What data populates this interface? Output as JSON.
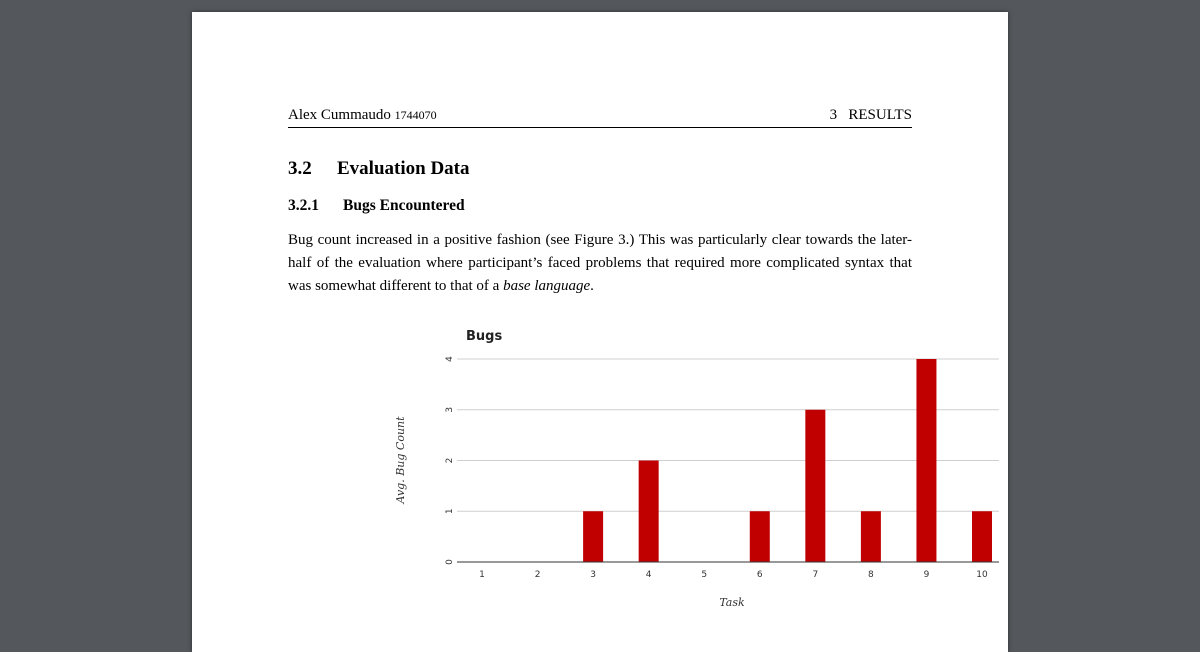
{
  "header": {
    "author": "Alex Cummaudo",
    "student_id": "1744070",
    "section_ref": "3   RESULTS"
  },
  "section": {
    "number": "3.2",
    "title": "Evaluation Data"
  },
  "subsection": {
    "number": "3.2.1",
    "title": "Bugs Encountered"
  },
  "paragraph": {
    "text_before": "Bug count increased in a positive fashion (see Figure 3.)  This was particularly clear towards the later-half of the evaluation where participant’s faced problems that required more complicated syntax that was somewhat different to that of a ",
    "emphasis": "base language",
    "text_after": "."
  },
  "chart_data": {
    "type": "bar",
    "title": "Bugs",
    "xlabel": "Task",
    "ylabel": "Avg. Bug Count",
    "categories": [
      "1",
      "2",
      "3",
      "4",
      "5",
      "6",
      "7",
      "8",
      "9",
      "10"
    ],
    "values": [
      0,
      0,
      1,
      2,
      0,
      1,
      3,
      1,
      4,
      1
    ],
    "ylim": [
      0,
      4
    ],
    "yticks": [
      0,
      1,
      2,
      3,
      4
    ],
    "grid": true,
    "bar_color": "#c00000"
  }
}
